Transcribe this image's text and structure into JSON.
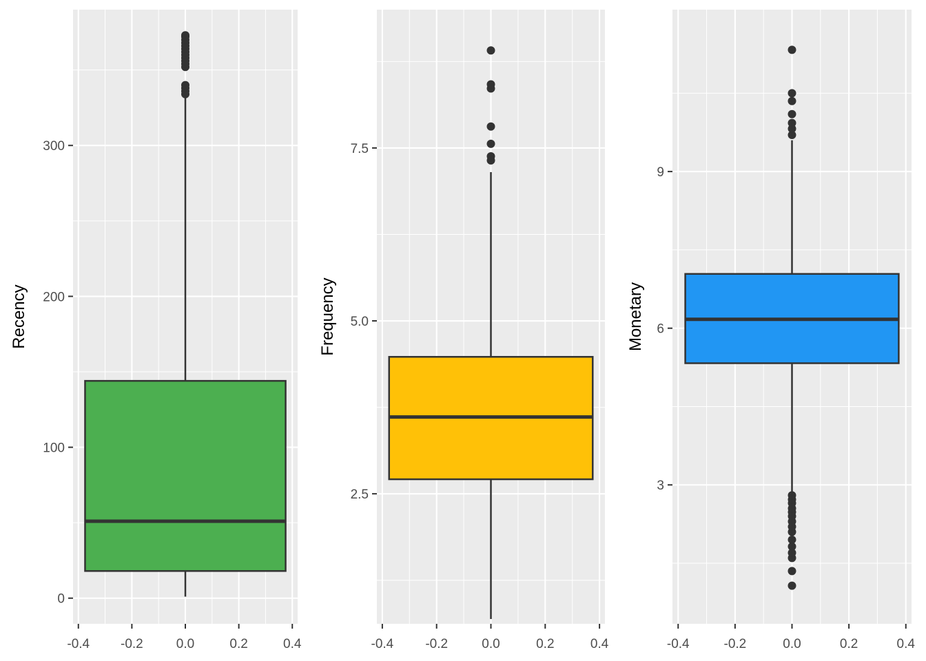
{
  "chart_data": [
    {
      "type": "box",
      "ylabel": "Recency",
      "xlim": [
        -0.42,
        0.42
      ],
      "ylim": [
        -17,
        390
      ],
      "x_ticks": [
        -0.4,
        -0.2,
        0.0,
        0.2,
        0.4
      ],
      "x_tick_labels": [
        "-0.4",
        "-0.2",
        "0.0",
        "0.2",
        "0.4"
      ],
      "y_ticks": [
        0,
        100,
        200,
        300
      ],
      "y_tick_labels": [
        "0",
        "100",
        "200",
        "300"
      ],
      "y_minor_ticks": [
        50,
        150,
        250,
        350
      ],
      "fill": "#4caf50",
      "box": {
        "whisker_low": 1,
        "q1": 18,
        "median": 51,
        "q3": 144,
        "whisker_high": 332,
        "x_left": -0.375,
        "x_right": 0.375
      },
      "outliers": [
        334,
        336,
        338,
        340,
        352,
        354,
        356,
        358,
        360,
        362,
        364,
        366,
        368,
        370,
        372,
        373
      ]
    },
    {
      "type": "box",
      "ylabel": "Frequency",
      "xlim": [
        -0.42,
        0.42
      ],
      "ylim": [
        0.62,
        9.5
      ],
      "x_ticks": [
        -0.4,
        -0.2,
        0.0,
        0.2,
        0.4
      ],
      "x_tick_labels": [
        "-0.4",
        "-0.2",
        "0.0",
        "0.2",
        "0.4"
      ],
      "y_ticks": [
        2.5,
        5.0,
        7.5
      ],
      "y_tick_labels": [
        "2.5",
        "5.0",
        "7.5"
      ],
      "y_minor_ticks": [
        1.25,
        3.75,
        6.25,
        8.75
      ],
      "fill": "#ffc107",
      "box": {
        "whisker_low": 0.69,
        "q1": 2.71,
        "median": 3.61,
        "q3": 4.48,
        "whisker_high": 7.15,
        "x_left": -0.375,
        "x_right": 0.375
      },
      "outliers": [
        7.32,
        7.38,
        7.56,
        7.81,
        8.36,
        8.42,
        8.91
      ]
    },
    {
      "type": "box",
      "ylabel": "Monetary",
      "xlim": [
        -0.42,
        0.42
      ],
      "ylim": [
        0.34,
        12.1
      ],
      "x_ticks": [
        -0.4,
        -0.2,
        0.0,
        0.2,
        0.4
      ],
      "x_tick_labels": [
        "-0.4",
        "-0.2",
        "0.0",
        "0.2",
        "0.4"
      ],
      "y_ticks": [
        3,
        6,
        9
      ],
      "y_tick_labels": [
        "3",
        "6",
        "9"
      ],
      "y_minor_ticks": [
        1.5,
        4.5,
        7.5,
        10.5
      ],
      "fill": "#2196f3",
      "box": {
        "whisker_low": 2.85,
        "q1": 5.33,
        "median": 6.17,
        "q3": 7.04,
        "whisker_high": 9.6,
        "x_left": -0.375,
        "x_right": 0.375
      },
      "outliers": [
        1.07,
        1.35,
        1.6,
        1.7,
        1.82,
        1.95,
        2.1,
        2.2,
        2.3,
        2.4,
        2.48,
        2.55,
        2.65,
        2.72,
        2.8,
        9.7,
        9.82,
        9.93,
        10.1,
        10.35,
        10.5,
        11.33
      ]
    }
  ]
}
